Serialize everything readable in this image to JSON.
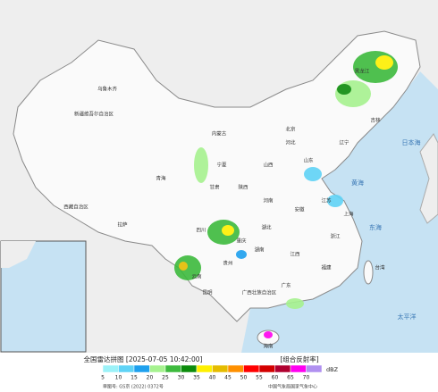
{
  "map": {
    "labels": [
      "乌鲁木齐",
      "新疆维吾尔自治区",
      "西藏自治区",
      "拉萨",
      "青海",
      "甘肃",
      "内蒙古",
      "宁夏",
      "陕西",
      "山西",
      "河北",
      "北京",
      "山东",
      "河南",
      "湖北",
      "四川",
      "重庆",
      "贵州",
      "云南",
      "昆明",
      "湖南",
      "江西",
      "安徽",
      "江苏",
      "上海",
      "浙江",
      "福建",
      "台湾",
      "广东",
      "广西壮族自治区",
      "海南",
      "吉林",
      "辽宁",
      "黑龙江",
      "黄海",
      "东海",
      "太平洋",
      "日本海"
    ]
  },
  "legend": {
    "title": "全国雷达拼图 [2025-07-05 10:42:00]",
    "product": "[组合反射率]",
    "unit": "dBZ",
    "ticks": [
      5,
      10,
      15,
      20,
      25,
      30,
      35,
      40,
      45,
      50,
      55,
      60,
      65,
      70
    ],
    "colors": [
      "#9cf2f8",
      "#5fd3f6",
      "#1ea0ee",
      "#a6f28f",
      "#3dba3d",
      "#0c8c0c",
      "#fef000",
      "#e5bc00",
      "#ff9000",
      "#ff0000",
      "#d40000",
      "#b00030",
      "#ff00f0",
      "#b090f0"
    ]
  },
  "footer": {
    "approval": "审图号: GS京 (2022) 0372号",
    "agency": "中国气象局国家气象中心"
  }
}
